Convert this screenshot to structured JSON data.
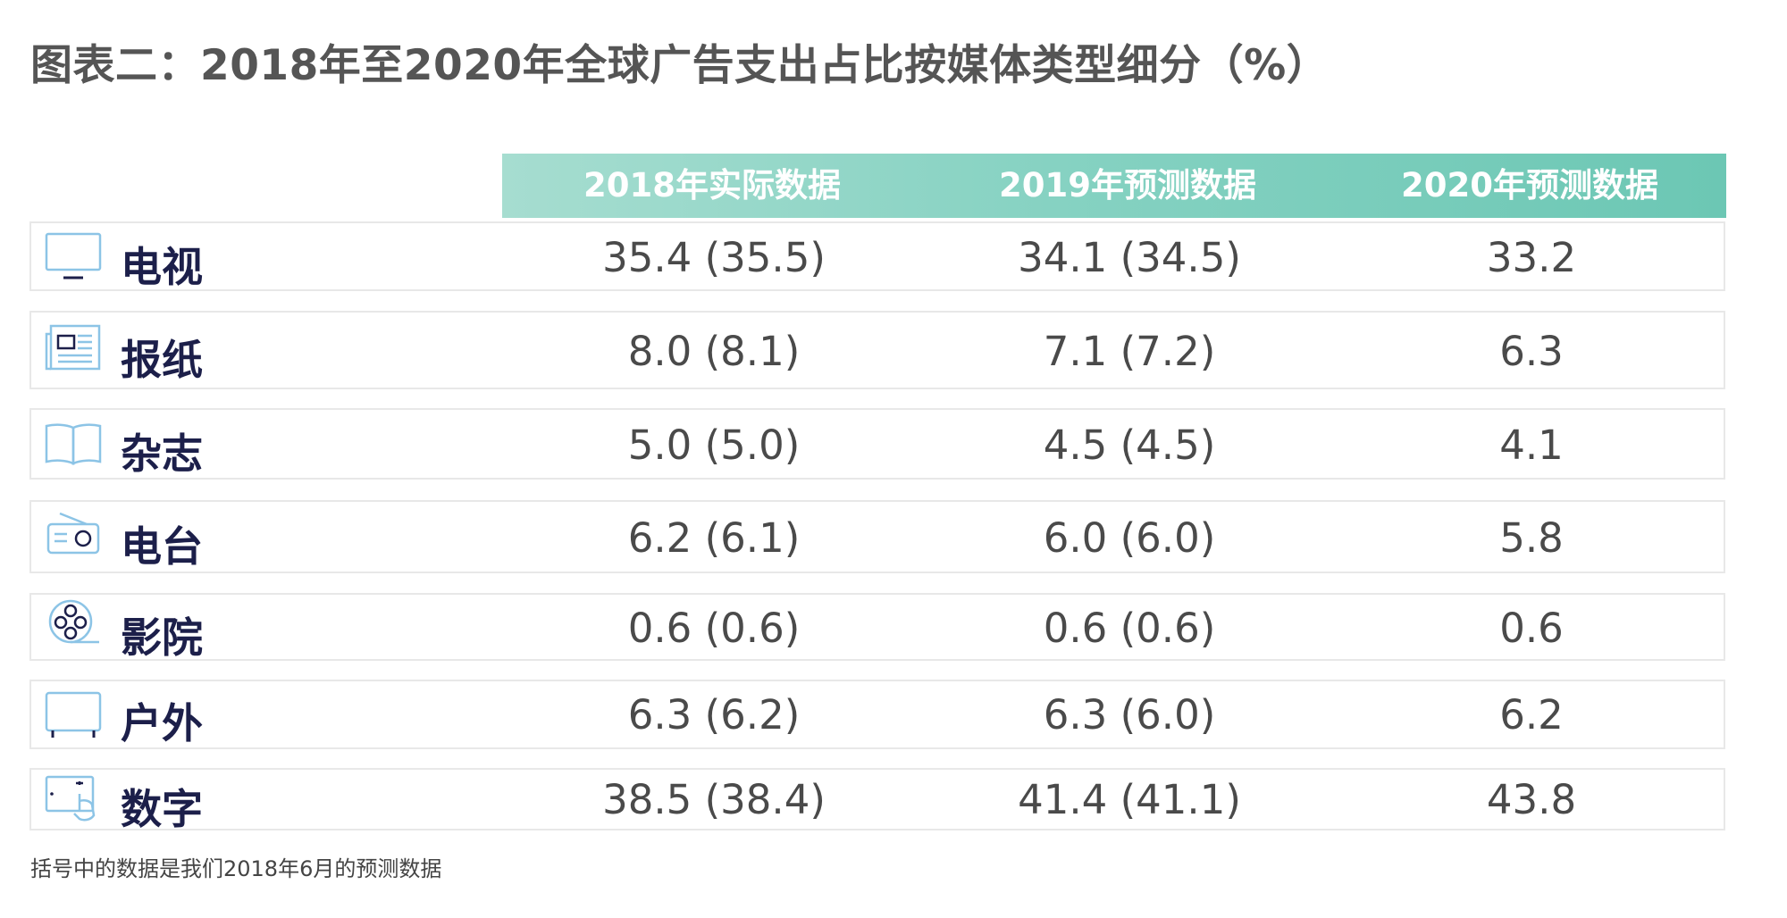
{
  "title": "图表二：2018年至2020年全球广告支出占比按媒体类型细分（%）",
  "footnote": "括号中的数据是我们2018年6月的预测数据",
  "colors": {
    "header_start": "#a6ddd0",
    "header_end": "#6cc7b4",
    "label_text": "#1c1f4a",
    "value_text": "#4a4a4a",
    "icon_stroke": "#8cc4e6",
    "row_border": "#e8e8e8"
  },
  "chart_data": {
    "type": "table",
    "title": "图表二：2018年至2020年全球广告支出占比按媒体类型细分（%）",
    "columns": [
      "2018年实际数据",
      "2019年预测数据",
      "2020年预测数据"
    ],
    "rows": [
      {
        "label": "电视",
        "icon": "tv-icon",
        "values": [
          "35.4 (35.5)",
          "34.1 (34.5)",
          "33.2"
        ]
      },
      {
        "label": "报纸",
        "icon": "newspaper-icon",
        "values": [
          "8.0 (8.1)",
          "7.1 (7.2)",
          "6.3"
        ]
      },
      {
        "label": "杂志",
        "icon": "magazine-icon",
        "values": [
          "5.0 (5.0)",
          "4.5 (4.5)",
          "4.1"
        ]
      },
      {
        "label": "电台",
        "icon": "radio-icon",
        "values": [
          "6.2 (6.1)",
          "6.0 (6.0)",
          "5.8"
        ]
      },
      {
        "label": "影院",
        "icon": "film-reel-icon",
        "values": [
          "0.6 (0.6)",
          "0.6 (0.6)",
          "0.6"
        ]
      },
      {
        "label": "户外",
        "icon": "billboard-icon",
        "values": [
          "6.3 (6.2)",
          "6.3 (6.0)",
          "6.2"
        ]
      },
      {
        "label": "数字",
        "icon": "tablet-touch-icon",
        "values": [
          "38.5 (38.4)",
          "41.4 (41.1)",
          "43.8"
        ]
      }
    ]
  }
}
